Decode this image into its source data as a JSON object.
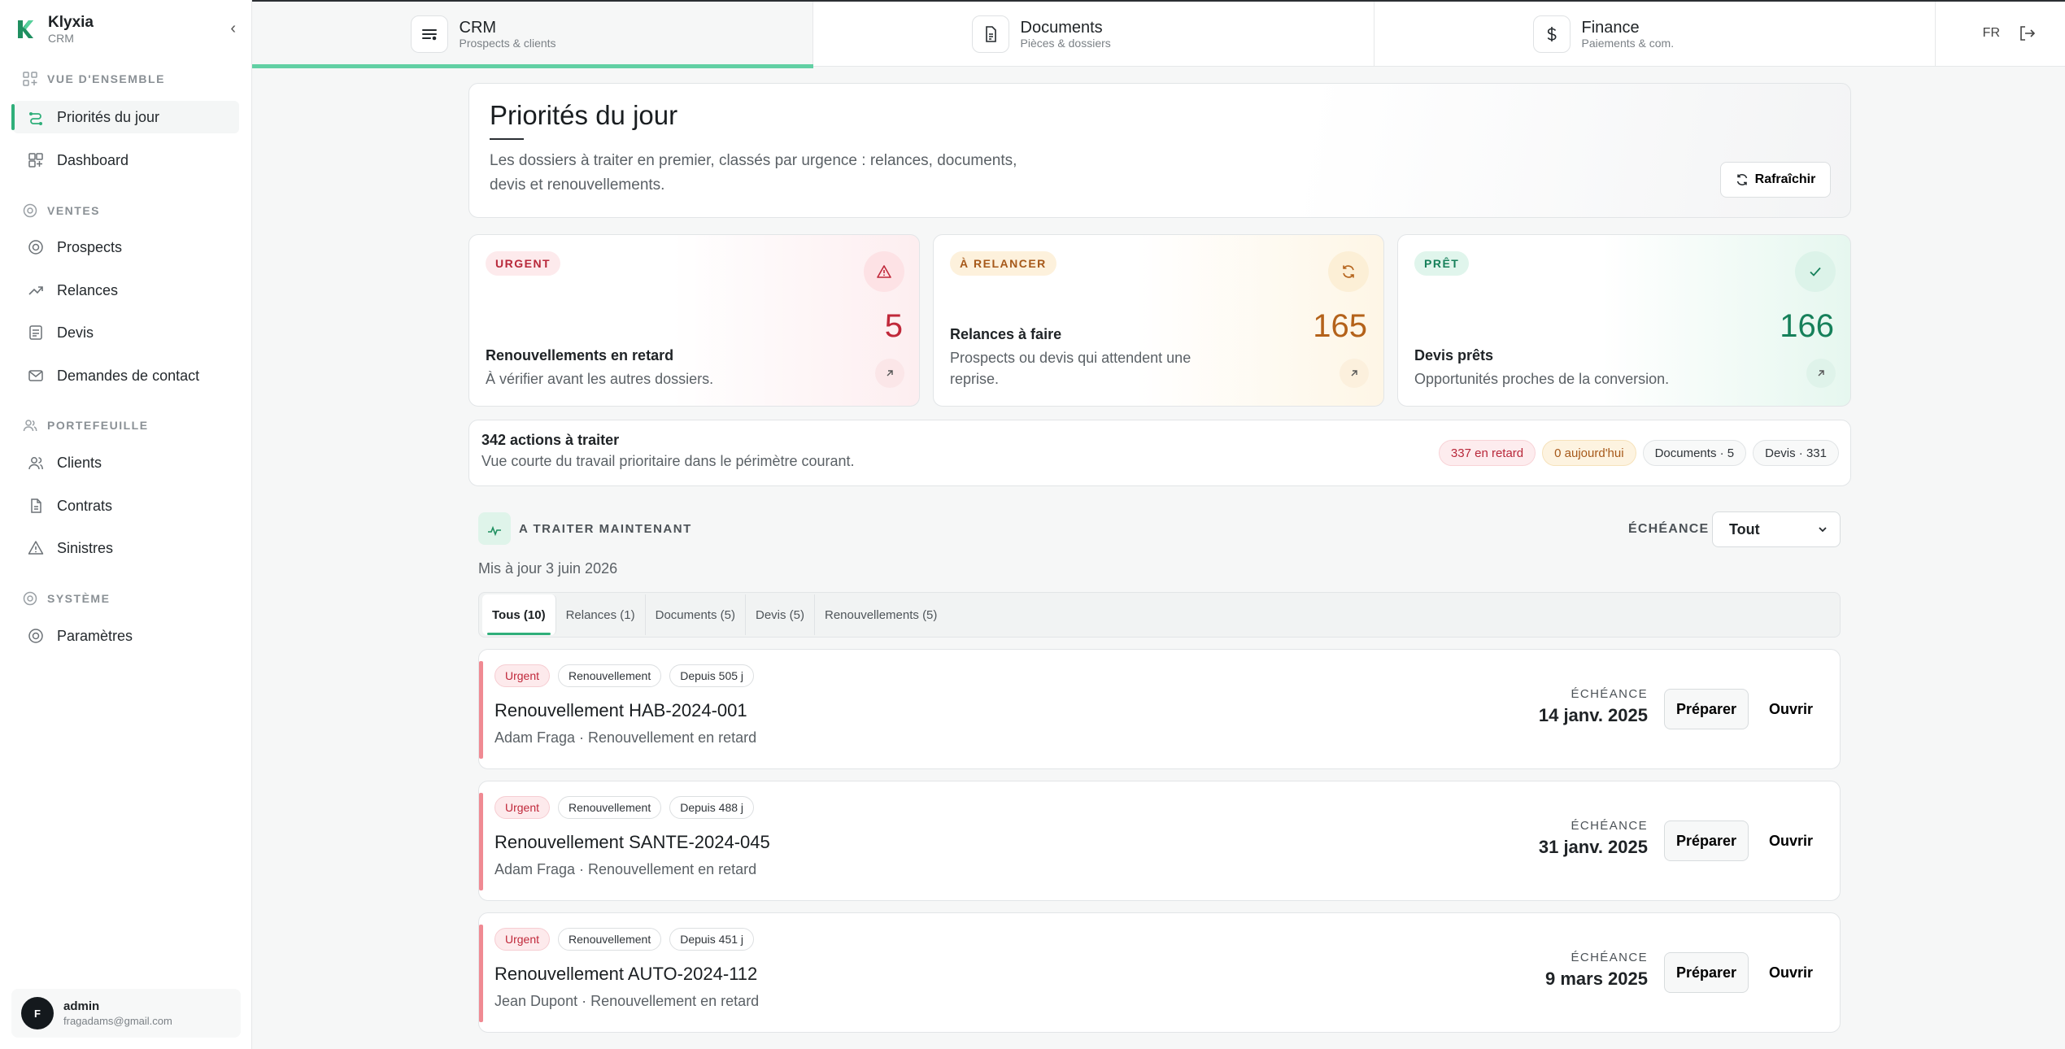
{
  "brand": {
    "name": "Klyxia",
    "sub": "CRM"
  },
  "sidebar": {
    "sections": [
      {
        "title": "VUE D'ENSEMBLE"
      },
      {
        "title": "VENTES"
      },
      {
        "title": "PORTEFEUILLE"
      },
      {
        "title": "SYSTÈME"
      }
    ],
    "items": [
      {
        "label": "Priorités du jour"
      },
      {
        "label": "Dashboard"
      },
      {
        "label": "Prospects"
      },
      {
        "label": "Relances"
      },
      {
        "label": "Devis"
      },
      {
        "label": "Demandes de contact"
      },
      {
        "label": "Clients"
      },
      {
        "label": "Contrats"
      },
      {
        "label": "Sinistres"
      },
      {
        "label": "Paramètres"
      }
    ]
  },
  "user": {
    "initial": "F",
    "name": "admin",
    "email": "fragadams@gmail.com"
  },
  "topbar": {
    "tabs": [
      {
        "title": "CRM",
        "sub": "Prospects & clients"
      },
      {
        "title": "Documents",
        "sub": "Pièces & dossiers"
      },
      {
        "title": "Finance",
        "sub": "Paiements & com."
      }
    ],
    "lang": "FR"
  },
  "hero": {
    "title": "Priorités du jour",
    "description": "Les dossiers à traiter en premier, classés par urgence : relances, documents, devis et renouvellements.",
    "refresh_label": "Rafraîchir"
  },
  "kpis": [
    {
      "pill": "URGENT",
      "value": "5",
      "label": "Renouvellements en retard",
      "desc": "À vérifier avant les autres dossiers."
    },
    {
      "pill": "À RELANCER",
      "value": "165",
      "label": "Relances à faire",
      "desc": "Prospects ou devis qui attendent une reprise."
    },
    {
      "pill": "PRÊT",
      "value": "166",
      "label": "Devis prêts",
      "desc": "Opportunités proches de la conversion."
    }
  ],
  "summary": {
    "title": "342 actions à traiter",
    "desc": "Vue courte du travail prioritaire dans le périmètre courant.",
    "chips": [
      "337 en retard",
      "0 aujourd'hui",
      "Documents · 5",
      "Devis · 331"
    ]
  },
  "section": {
    "title": "A TRAITER MAINTENANT",
    "updated": "Mis à jour 3 juin 2026",
    "filter_label": "ÉCHÉANCE",
    "filter_value": "Tout"
  },
  "tabs": [
    "Tous (10)",
    "Relances (1)",
    "Documents (5)",
    "Devis (5)",
    "Renouvellements (5)"
  ],
  "tasks": [
    {
      "badges": [
        "Urgent",
        "Renouvellement",
        "Depuis 505 j"
      ],
      "title": "Renouvellement HAB-2024-001",
      "sub": "Adam Fraga · Renouvellement en retard",
      "due_label": "ÉCHÉANCE",
      "due": "14 janv. 2025",
      "prep": "Préparer",
      "open": "Ouvrir"
    },
    {
      "badges": [
        "Urgent",
        "Renouvellement",
        "Depuis 488 j"
      ],
      "title": "Renouvellement SANTE-2024-045",
      "sub": "Adam Fraga · Renouvellement en retard",
      "due_label": "ÉCHÉANCE",
      "due": "31 janv. 2025",
      "prep": "Préparer",
      "open": "Ouvrir"
    },
    {
      "badges": [
        "Urgent",
        "Renouvellement",
        "Depuis 451 j"
      ],
      "title": "Renouvellement AUTO-2024-112",
      "sub": "Jean Dupont · Renouvellement en retard",
      "due_label": "ÉCHÉANCE",
      "due": "9 mars 2025",
      "prep": "Préparer",
      "open": "Ouvrir"
    }
  ],
  "colors": {
    "accent": "#2faf7a",
    "urgent": "#c0283a",
    "relance": "#b4621a",
    "pret": "#16805a"
  }
}
